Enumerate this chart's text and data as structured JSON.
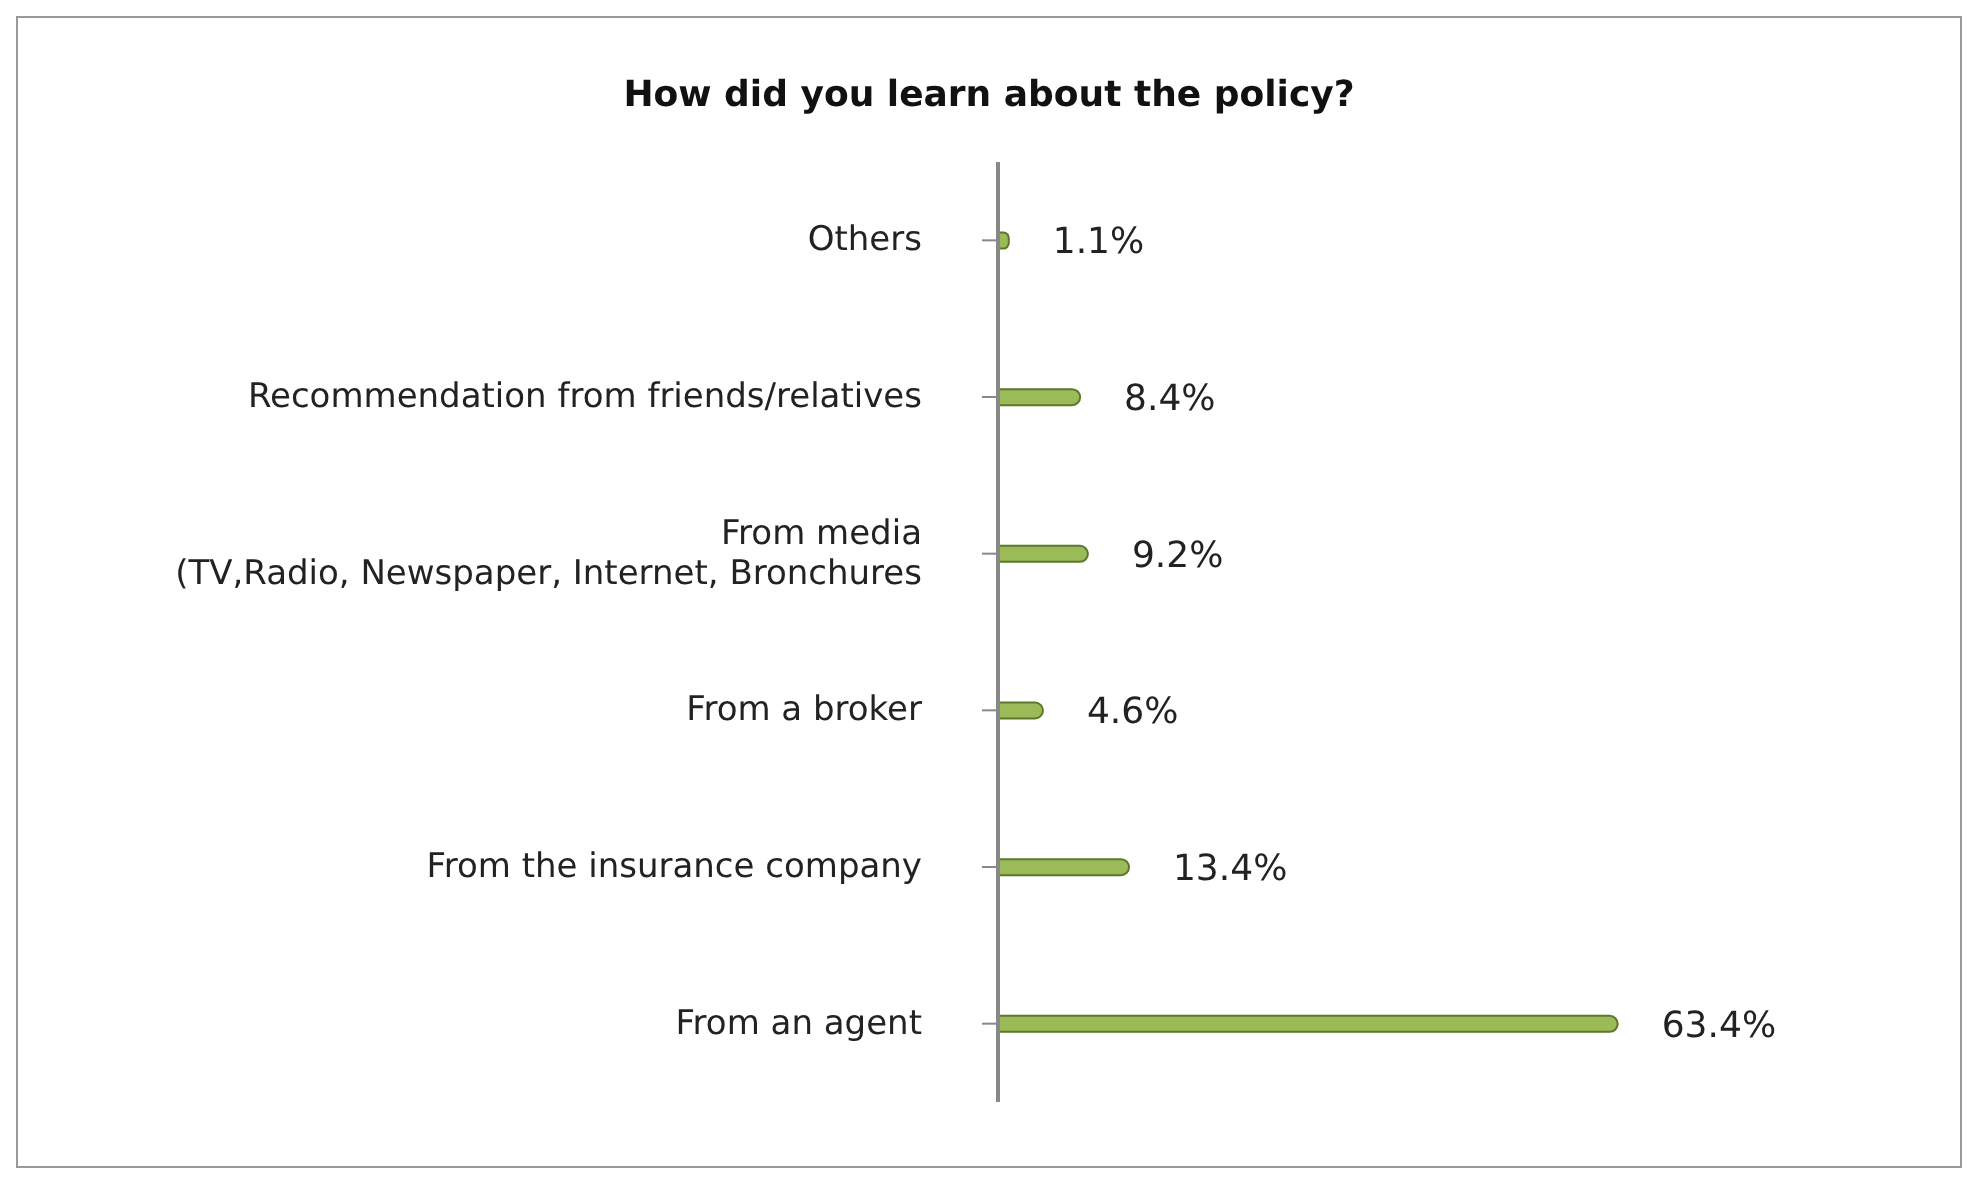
{
  "chart_data": {
    "type": "bar",
    "orientation": "horizontal",
    "title": "How did you learn about the policy?",
    "categories": [
      "Others",
      "Recommendation from friends/relatives",
      "From media\n(TV,Radio, Newspaper, Internet, Bronchures",
      "From a broker",
      "From the insurance company",
      "From an agent"
    ],
    "values": [
      1.1,
      8.4,
      9.2,
      4.6,
      13.4,
      63.4
    ],
    "value_labels": [
      "1.1%",
      "8.4%",
      "9.2%",
      "4.6%",
      "13.4%",
      "63.4%"
    ],
    "color": "#9bbb59",
    "grid": false,
    "legend": false
  }
}
